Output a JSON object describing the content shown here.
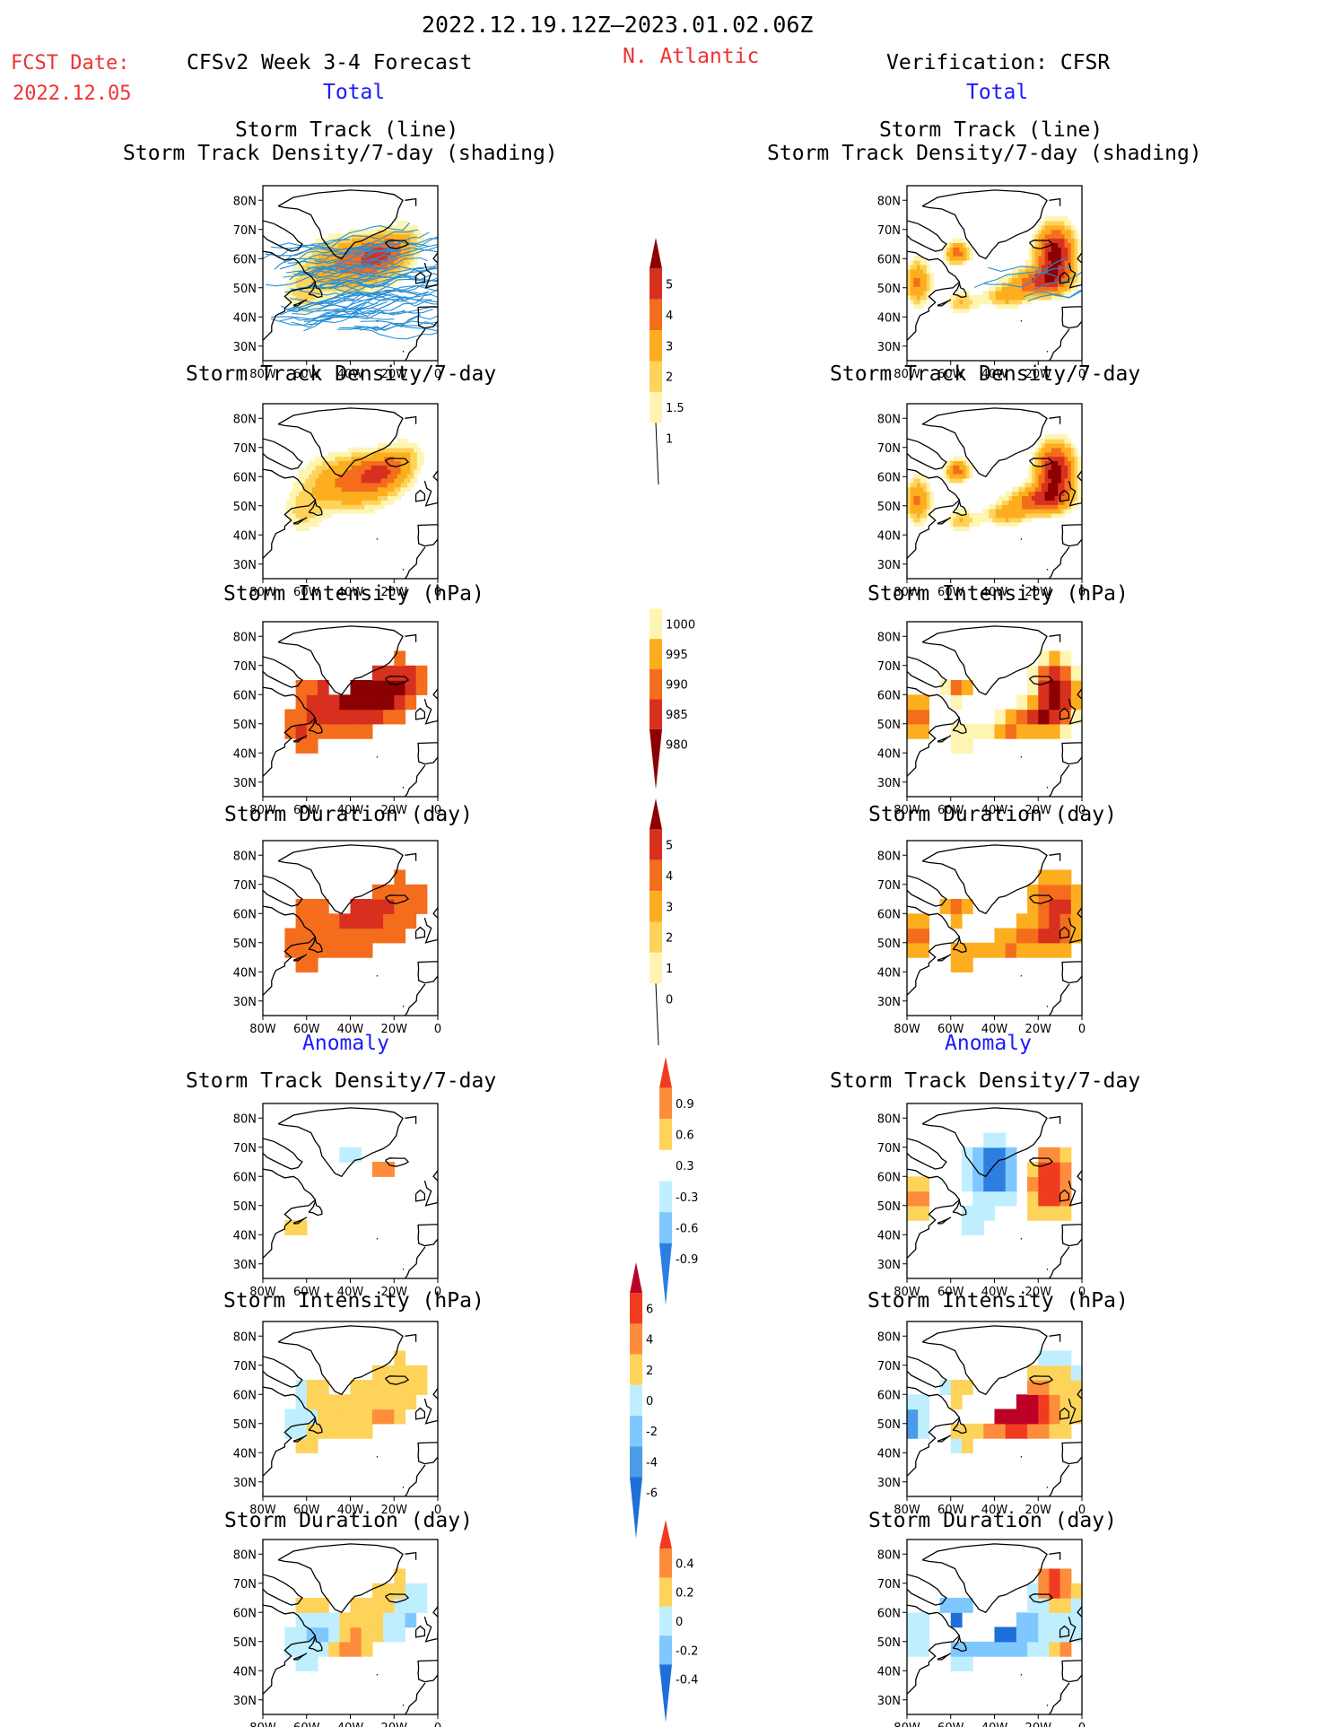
{
  "header": {
    "date_range": "2022.12.19.12Z–2023.01.02.06Z",
    "fcst_label": "FCST Date:",
    "fcst_date": "2022.12.05",
    "model_title": "CFSv2 Week 3-4 Forecast",
    "region": "N. Atlantic",
    "verification": "Verification: CFSR"
  },
  "sections": {
    "total_left": "Total",
    "total_right": "Total",
    "anomaly_left": "Anomaly",
    "anomaly_right": "Anomaly"
  },
  "panel_titles": {
    "track_line": "Storm Track (line)",
    "track_shading": "Storm Track Density/7-day (shading)",
    "density": "Storm Track Density/7-day",
    "intensity": "Storm Intensity (hPa)",
    "duration": "Storm Duration (day)"
  },
  "axes": {
    "lat_labels": [
      "80N",
      "70N",
      "60N",
      "50N",
      "40N",
      "30N"
    ],
    "lon_labels": [
      "80W",
      "60W",
      "40W",
      "20W",
      "0"
    ]
  },
  "colorbars": {
    "density": {
      "labels": [
        "5",
        "4",
        "3",
        "2",
        "1.5",
        "1"
      ],
      "colors": [
        "#8b0000",
        "#d7301f",
        "#f46d1c",
        "#fdae1f",
        "#fdd35a",
        "#fff5b3"
      ]
    },
    "intensity": {
      "labels": [
        "1000",
        "995",
        "990",
        "985",
        "980"
      ],
      "colors": [
        "#fff5b3",
        "#fdae1f",
        "#f46d1c",
        "#d7301f",
        "#8b0000"
      ]
    },
    "duration": {
      "labels": [
        "5",
        "4",
        "3",
        "2",
        "1",
        "0"
      ],
      "colors": [
        "#8b0000",
        "#d7301f",
        "#f46d1c",
        "#fdae1f",
        "#fdd35a",
        "#fff5b3"
      ]
    },
    "density_anom": {
      "labels": [
        "0.9",
        "0.6",
        "0.3",
        "-0.3",
        "-0.6",
        "-0.9"
      ],
      "colors": [
        "#f03b20",
        "#fd8d3c",
        "#fdd35a",
        "#ffffff",
        "#bfefff",
        "#7fc8ff",
        "#2c7fe0"
      ]
    },
    "intensity_anom": {
      "labels": [
        "6",
        "4",
        "2",
        "0",
        "-2",
        "-4",
        "-6"
      ],
      "colors": [
        "#bd0026",
        "#f03b20",
        "#fd8d3c",
        "#fdd35a",
        "#bfefff",
        "#7fc8ff",
        "#4a9be8",
        "#1e6fd9"
      ]
    },
    "duration_anom": {
      "labels": [
        "0.4",
        "0.2",
        "0",
        "-0.2",
        "-0.4"
      ],
      "colors": [
        "#f03b20",
        "#fd8d3c",
        "#fdd35a",
        "#bfefff",
        "#7fc8ff",
        "#1e6fd9"
      ]
    }
  }
}
